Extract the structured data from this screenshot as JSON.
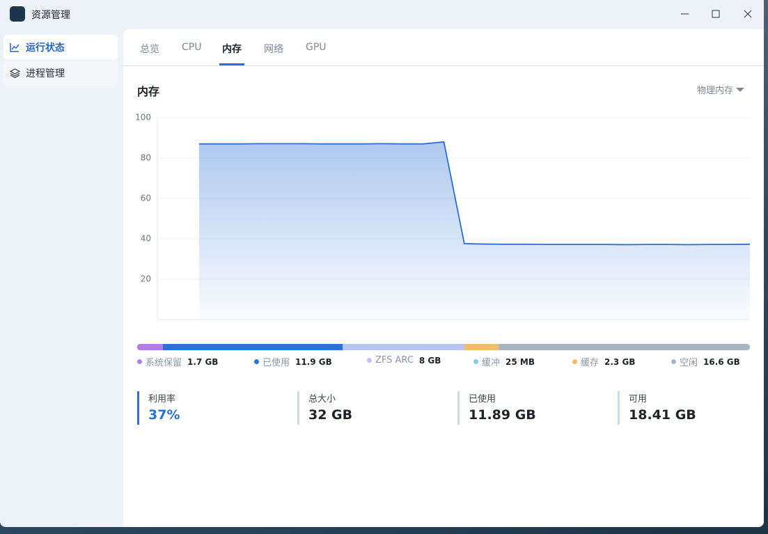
{
  "window": {
    "title": "资源管理"
  },
  "sidebar": {
    "items": [
      "运行状态",
      "进程管理"
    ]
  },
  "tabs": [
    "总览",
    "CPU",
    "内存",
    "网络",
    "GPU"
  ],
  "panel": {
    "title": "内存",
    "selector": "物理内存"
  },
  "chart_data": {
    "type": "area",
    "color": "#2a6fd6",
    "grid": true,
    "values": [
      87,
      87,
      87,
      87.1,
      87.1,
      87.1,
      87,
      87,
      87,
      87.1,
      87,
      87,
      88,
      37.6,
      37.4,
      37.3,
      37.3,
      37.2,
      37.2,
      37.2,
      37.2,
      37.1,
      37.2,
      37.2,
      37.1,
      37.2,
      37.2,
      37.3
    ],
    "ylim": [
      0,
      100
    ],
    "yticks": [
      20,
      40,
      60,
      80,
      100
    ]
  },
  "memory_breakdown": {
    "type": "stacked-bar",
    "categories": [
      "系统保留",
      "已使用",
      "ZFS ARC",
      "缓冲",
      "缓存",
      "空闲"
    ],
    "values": [
      1.7,
      11.9,
      8,
      0.025,
      2.3,
      16.6
    ],
    "value_labels": [
      "1.7 GB",
      "11.9 GB",
      "8 GB",
      "25 MB",
      "2.3 GB",
      "16.6 GB"
    ],
    "colors": [
      "#b57be8",
      "#2a72dc",
      "#b9c4f6",
      "#86cde8",
      "#f2bd6a",
      "#a9b4c1"
    ]
  },
  "stats": [
    {
      "label": "利用率",
      "value": "37%"
    },
    {
      "label": "总大小",
      "value": "32 GB"
    },
    {
      "label": "已使用",
      "value": "11.89 GB"
    },
    {
      "label": "可用",
      "value": "18.41 GB"
    }
  ]
}
